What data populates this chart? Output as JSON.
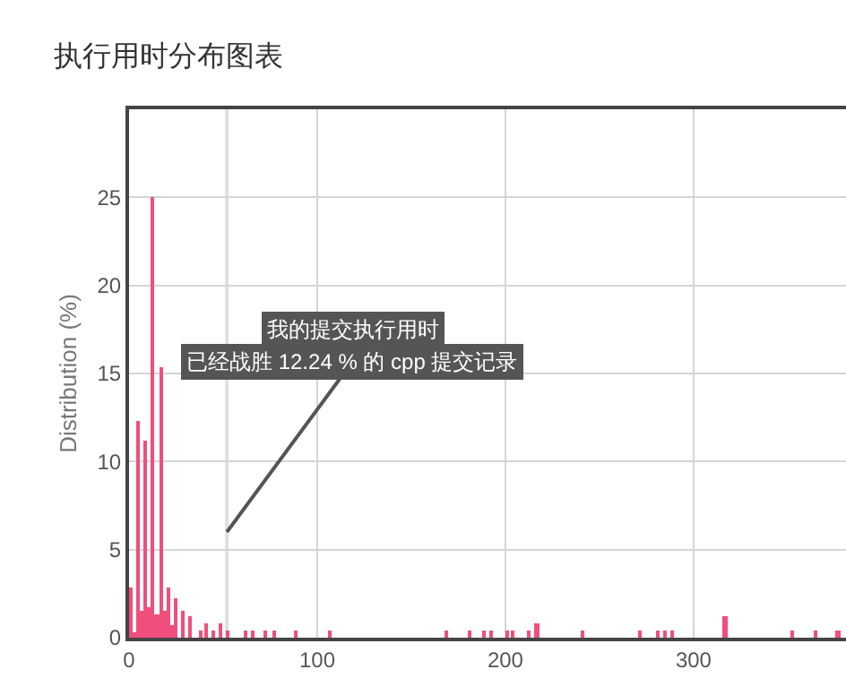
{
  "chart_data": {
    "type": "bar",
    "title": "执行用时分布图表",
    "ylabel": "Distribution (%)",
    "x": [
      1,
      3,
      5,
      7,
      9,
      11,
      13,
      15,
      17,
      19,
      21,
      23,
      25,
      29,
      33,
      38,
      41,
      45,
      49,
      53,
      62,
      66,
      73,
      77,
      89,
      107,
      169,
      181,
      189,
      193,
      201,
      204,
      213,
      217,
      241,
      272,
      281,
      285,
      289,
      317,
      353,
      365,
      377
    ],
    "values": [
      2.8,
      0.3,
      12.3,
      1.5,
      11.2,
      1.7,
      25,
      1.3,
      15.4,
      1.5,
      2.8,
      0.7,
      2.2,
      1.5,
      1.2,
      0.4,
      0.8,
      0.4,
      0.8,
      0.4,
      0.4,
      0.4,
      0.4,
      0.4,
      0.4,
      0.4,
      0.4,
      0.4,
      0.4,
      0.4,
      0.4,
      0.4,
      0.4,
      0.8,
      0.4,
      0.4,
      0.4,
      0.4,
      0.4,
      1.2,
      0.4,
      0.4,
      0.4
    ],
    "color": "#f04e7c",
    "xlim": [
      0,
      381
    ],
    "xticks": [
      0,
      100,
      200,
      300
    ],
    "ylim": [
      0,
      30
    ],
    "yticks": [
      0,
      5,
      10,
      15,
      20,
      25
    ],
    "grid": true,
    "legend": false,
    "bands": [
      {
        "axis": "x",
        "from": 51,
        "to": 53,
        "color": "#e0e0e0"
      }
    ],
    "annotations": [
      "我的提交执行用时",
      {
        "text": "已经战胜 12.24 % 的 cpp 提交记录",
        "x": 52,
        "y": 6
      }
    ]
  }
}
